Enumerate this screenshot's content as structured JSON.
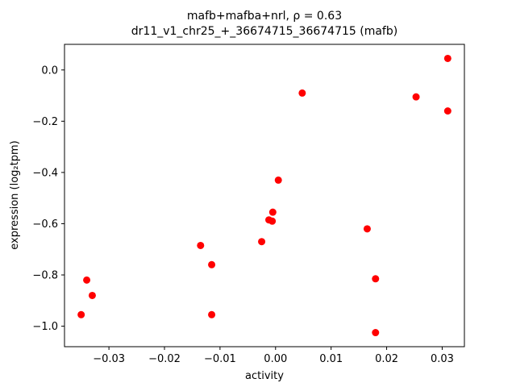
{
  "figure": {
    "title_line1": "mafb+mafba+nrl, ρ = 0.63",
    "title_line2": "dr11_v1_chr25_+_36674715_36674715 (mafb)",
    "xlabel": "activity",
    "ylabel": "expression (log₂tpm)"
  },
  "chart_data": {
    "type": "scatter",
    "title": "mafb+mafba+nrl, ρ = 0.63 — dr11_v1_chr25_+_36674715_36674715 (mafb)",
    "xlabel": "activity",
    "ylabel": "expression (log2 tpm)",
    "marker_color": "#ff0000",
    "marker_radius": 4.5,
    "grid": false,
    "legend": "none",
    "xlim": [
      -0.038,
      0.034
    ],
    "ylim": [
      -1.08,
      0.1
    ],
    "xticks": [
      -0.03,
      -0.02,
      -0.01,
      0.0,
      0.01,
      0.02,
      0.03
    ],
    "xtick_labels": [
      "−0.03",
      "−0.02",
      "−0.01",
      "0.00",
      "0.01",
      "0.02",
      "0.03"
    ],
    "yticks": [
      0.0,
      -0.2,
      -0.4,
      -0.6,
      -0.8,
      -1.0
    ],
    "ytick_labels": [
      "0.0",
      "−0.2",
      "−0.4",
      "−0.6",
      "−0.8",
      "−1.0"
    ],
    "points": [
      [
        0.031,
        0.045
      ],
      [
        0.031,
        -0.16
      ],
      [
        0.0253,
        -0.105
      ],
      [
        0.0048,
        -0.09
      ],
      [
        0.0005,
        -0.43
      ],
      [
        -0.0005,
        -0.555
      ],
      [
        -0.0012,
        -0.585
      ],
      [
        -0.0006,
        -0.59
      ],
      [
        -0.0025,
        -0.67
      ],
      [
        -0.0135,
        -0.685
      ],
      [
        -0.0115,
        -0.76
      ],
      [
        0.0165,
        -0.62
      ],
      [
        0.018,
        -0.815
      ],
      [
        -0.034,
        -0.82
      ],
      [
        -0.033,
        -0.88
      ],
      [
        -0.035,
        -0.955
      ],
      [
        -0.0115,
        -0.955
      ],
      [
        0.018,
        -1.025
      ]
    ]
  }
}
